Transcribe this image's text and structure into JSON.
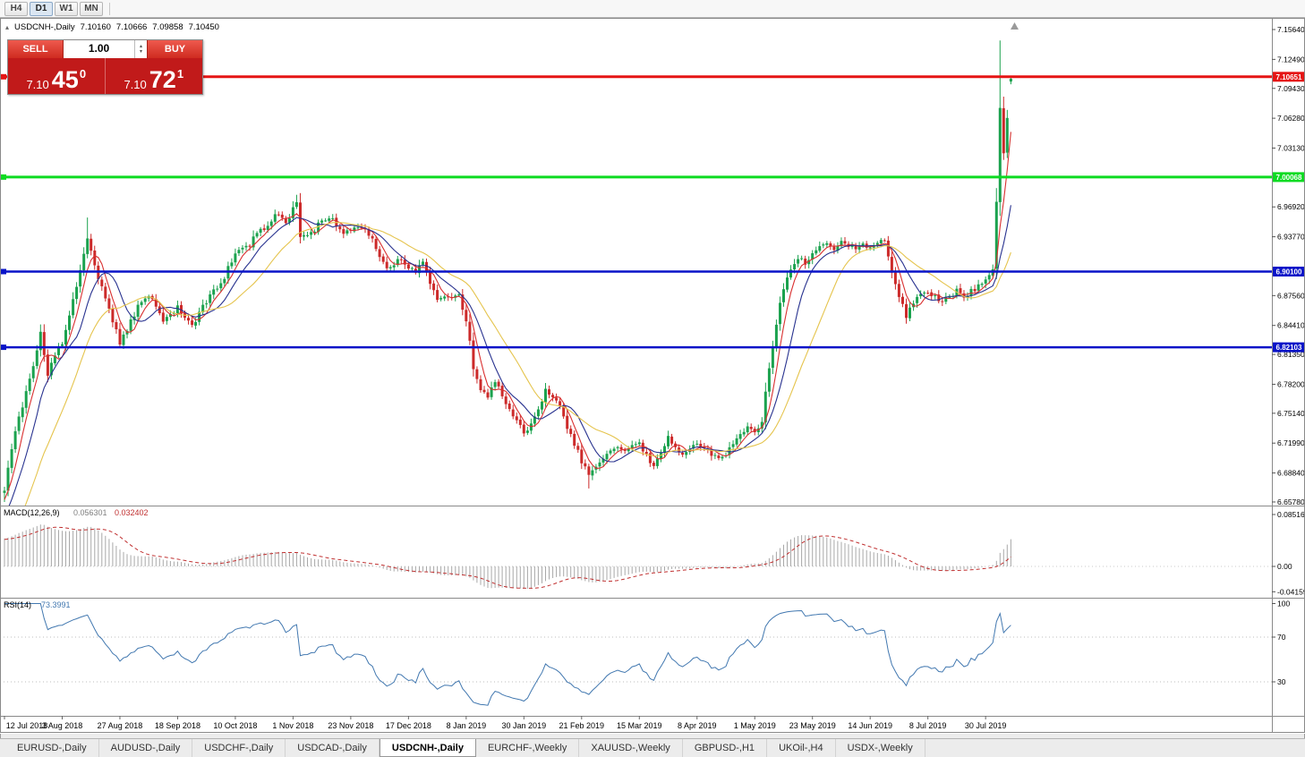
{
  "icons": {
    "collapse": "▴",
    "spin_up": "▴",
    "spin_down": "▾"
  },
  "toolbar": {
    "timeframes": [
      {
        "label": "H4",
        "active": false
      },
      {
        "label": "D1",
        "active": true
      },
      {
        "label": "W1",
        "active": false
      },
      {
        "label": "MN",
        "active": false
      }
    ]
  },
  "symbol_info": {
    "symbol": "USDCNH-,Daily",
    "open": "7.10160",
    "high": "7.10666",
    "low": "7.09858",
    "close": "7.10450"
  },
  "trade_panel": {
    "sell_label": "SELL",
    "buy_label": "BUY",
    "volume": "1.00",
    "sell_price": {
      "small": "7.10",
      "big": "45",
      "sup": "0"
    },
    "buy_price": {
      "small": "7.10",
      "big": "72",
      "sup": "1"
    }
  },
  "tabbar": {
    "tabs": [
      {
        "label": "EURUSD-,Daily",
        "active": false
      },
      {
        "label": "AUDUSD-,Daily",
        "active": false
      },
      {
        "label": "USDCHF-,Daily",
        "active": false
      },
      {
        "label": "USDCAD-,Daily",
        "active": false
      },
      {
        "label": "USDCNH-,Daily",
        "active": true
      },
      {
        "label": "EURCHF-,Weekly",
        "active": false
      },
      {
        "label": "XAUUSD-,Weekly",
        "active": false
      },
      {
        "label": "GBPUSD-,H1",
        "active": false
      },
      {
        "label": "UKOil-,H4",
        "active": false
      },
      {
        "label": "USDX-,Weekly",
        "active": false
      }
    ]
  },
  "chart_data": {
    "type": "candlestick",
    "symbol": "USDCNH-",
    "timeframe": "Daily",
    "last_candle": {
      "open": 7.1016,
      "high": 7.10666,
      "low": 7.09858,
      "close": 7.1045
    },
    "y_range": {
      "top": 7.1668,
      "bottom": 6.654
    },
    "y_axis_labels": [
      "7.15640",
      "7.12490",
      "7.09430",
      "7.06280",
      "7.03130",
      "6.96920",
      "6.93770",
      "6.87560",
      "6.84410",
      "6.81350",
      "6.78200",
      "6.75140",
      "6.71990",
      "6.68840",
      "6.65780"
    ],
    "x_axis": {
      "labels": [
        {
          "label": "12 Jul 2018",
          "day": 0
        },
        {
          "label": "3 Aug 2018",
          "day": 16
        },
        {
          "label": "27 Aug 2018",
          "day": 32
        },
        {
          "label": "18 Sep 2018",
          "day": 48
        },
        {
          "label": "10 Oct 2018",
          "day": 64
        },
        {
          "label": "1 Nov 2018",
          "day": 80
        },
        {
          "label": "23 Nov 2018",
          "day": 96
        },
        {
          "label": "17 Dec 2018",
          "day": 112
        },
        {
          "label": "8 Jan 2019",
          "day": 128
        },
        {
          "label": "30 Jan 2019",
          "day": 144
        },
        {
          "label": "21 Feb 2019",
          "day": 160
        },
        {
          "label": "15 Mar 2019",
          "day": 176
        },
        {
          "label": "8 Apr 2019",
          "day": 192
        },
        {
          "label": "1 May 2019",
          "day": 208
        },
        {
          "label": "23 May 2019",
          "day": 224
        },
        {
          "label": "14 Jun 2019",
          "day": 240
        },
        {
          "label": "8 Jul 2019",
          "day": 256
        },
        {
          "label": "30 Jul 2019",
          "day": 272
        }
      ]
    },
    "num_candles": 280,
    "warmup_days": 30,
    "candle_colors": {
      "up": "#1ba24e",
      "down": "#cc2a2a"
    },
    "price_anchors": [
      [
        -30,
        6.43
      ],
      [
        -22,
        6.5
      ],
      [
        -14,
        6.575
      ],
      [
        -7,
        6.625
      ],
      [
        0,
        6.672
      ],
      [
        2,
        6.715
      ],
      [
        4,
        6.745
      ],
      [
        6,
        6.775
      ],
      [
        8,
        6.8
      ],
      [
        10,
        6.835
      ],
      [
        12,
        6.79
      ],
      [
        14,
        6.815
      ],
      [
        16,
        6.825
      ],
      [
        18,
        6.855
      ],
      [
        20,
        6.885
      ],
      [
        23,
        6.935
      ],
      [
        25,
        6.905
      ],
      [
        27,
        6.885
      ],
      [
        29,
        6.862
      ],
      [
        32,
        6.826
      ],
      [
        34,
        6.84
      ],
      [
        36,
        6.856
      ],
      [
        38,
        6.87
      ],
      [
        40,
        6.876
      ],
      [
        42,
        6.862
      ],
      [
        44,
        6.848
      ],
      [
        46,
        6.856
      ],
      [
        48,
        6.864
      ],
      [
        50,
        6.852
      ],
      [
        52,
        6.842
      ],
      [
        54,
        6.856
      ],
      [
        56,
        6.87
      ],
      [
        58,
        6.88
      ],
      [
        60,
        6.886
      ],
      [
        62,
        6.904
      ],
      [
        64,
        6.92
      ],
      [
        66,
        6.926
      ],
      [
        68,
        6.93
      ],
      [
        70,
        6.94
      ],
      [
        72,
        6.946
      ],
      [
        74,
        6.954
      ],
      [
        76,
        6.964
      ],
      [
        78,
        6.954
      ],
      [
        80,
        6.966
      ],
      [
        81,
        6.976
      ],
      [
        82,
        6.936
      ],
      [
        84,
        6.94
      ],
      [
        86,
        6.946
      ],
      [
        88,
        6.954
      ],
      [
        90,
        6.96
      ],
      [
        92,
        6.95
      ],
      [
        94,
        6.94
      ],
      [
        96,
        6.946
      ],
      [
        98,
        6.95
      ],
      [
        100,
        6.944
      ],
      [
        102,
        6.934
      ],
      [
        104,
        6.916
      ],
      [
        106,
        6.906
      ],
      [
        108,
        6.91
      ],
      [
        110,
        6.916
      ],
      [
        112,
        6.906
      ],
      [
        114,
        6.9
      ],
      [
        116,
        6.91
      ],
      [
        118,
        6.886
      ],
      [
        120,
        6.872
      ],
      [
        122,
        6.876
      ],
      [
        124,
        6.87
      ],
      [
        126,
        6.876
      ],
      [
        128,
        6.85
      ],
      [
        130,
        6.8
      ],
      [
        132,
        6.776
      ],
      [
        134,
        6.766
      ],
      [
        136,
        6.786
      ],
      [
        138,
        6.77
      ],
      [
        140,
        6.756
      ],
      [
        142,
        6.746
      ],
      [
        144,
        6.732
      ],
      [
        146,
        6.74
      ],
      [
        148,
        6.756
      ],
      [
        150,
        6.776
      ],
      [
        152,
        6.77
      ],
      [
        154,
        6.76
      ],
      [
        156,
        6.736
      ],
      [
        158,
        6.72
      ],
      [
        160,
        6.7
      ],
      [
        162,
        6.686
      ],
      [
        164,
        6.696
      ],
      [
        166,
        6.706
      ],
      [
        168,
        6.712
      ],
      [
        170,
        6.716
      ],
      [
        172,
        6.71
      ],
      [
        174,
        6.716
      ],
      [
        176,
        6.72
      ],
      [
        178,
        6.706
      ],
      [
        180,
        6.696
      ],
      [
        182,
        6.71
      ],
      [
        184,
        6.726
      ],
      [
        186,
        6.716
      ],
      [
        188,
        6.706
      ],
      [
        190,
        6.716
      ],
      [
        192,
        6.72
      ],
      [
        194,
        6.714
      ],
      [
        196,
        6.708
      ],
      [
        198,
        6.704
      ],
      [
        200,
        6.71
      ],
      [
        202,
        6.72
      ],
      [
        204,
        6.73
      ],
      [
        206,
        6.736
      ],
      [
        208,
        6.732
      ],
      [
        210,
        6.74
      ],
      [
        211,
        6.775
      ],
      [
        212,
        6.8
      ],
      [
        213,
        6.822
      ],
      [
        214,
        6.842
      ],
      [
        215,
        6.866
      ],
      [
        216,
        6.882
      ],
      [
        218,
        6.906
      ],
      [
        220,
        6.916
      ],
      [
        222,
        6.91
      ],
      [
        224,
        6.92
      ],
      [
        226,
        6.926
      ],
      [
        228,
        6.93
      ],
      [
        230,
        6.924
      ],
      [
        232,
        6.936
      ],
      [
        234,
        6.93
      ],
      [
        236,
        6.924
      ],
      [
        238,
        6.93
      ],
      [
        240,
        6.924
      ],
      [
        242,
        6.93
      ],
      [
        244,
        6.936
      ],
      [
        246,
        6.9
      ],
      [
        248,
        6.874
      ],
      [
        250,
        6.854
      ],
      [
        252,
        6.87
      ],
      [
        254,
        6.876
      ],
      [
        256,
        6.88
      ],
      [
        258,
        6.874
      ],
      [
        260,
        6.87
      ],
      [
        262,
        6.876
      ],
      [
        264,
        6.88
      ],
      [
        266,
        6.874
      ],
      [
        268,
        6.88
      ],
      [
        270,
        6.886
      ],
      [
        272,
        6.89
      ],
      [
        274,
        6.902
      ],
      [
        275,
        6.975
      ],
      [
        276,
        7.072
      ],
      [
        277,
        7.028
      ],
      [
        278,
        7.066
      ],
      [
        279,
        7.1045
      ]
    ],
    "forced_candles": [
      {
        "day": 0,
        "low": 6.6578
      },
      {
        "day": 23,
        "high": 6.958
      },
      {
        "day": 81,
        "high": 6.982
      },
      {
        "day": 162,
        "low": 6.672
      },
      {
        "day": 276,
        "high": 7.1449
      },
      {
        "day": 279,
        "open": 7.1016,
        "high": 7.10666,
        "low": 7.09858,
        "close": 7.1045
      }
    ],
    "moving_averages": [
      {
        "name": "ma-fast",
        "period": 5,
        "color": "#d93030"
      },
      {
        "name": "ma-mid",
        "period": 10,
        "color": "#28328f"
      },
      {
        "name": "ma-slow",
        "period": 21,
        "color": "#e5c44d"
      }
    ],
    "horizontal_lines": [
      {
        "label": "7.10651",
        "price": 7.10651,
        "color": "#e51414",
        "width": 3
      },
      {
        "label": "7.00068",
        "price": 7.00068,
        "color": "#0ddb22",
        "width": 3
      },
      {
        "label": "6.90100",
        "price": 6.901,
        "color": "#0a14c8",
        "width": 2.5
      },
      {
        "label": "6.82103",
        "price": 6.82103,
        "color": "#0a14c8",
        "width": 2.5
      }
    ],
    "indicators": [
      {
        "name": "MACD",
        "label": "MACD(12,26,9)",
        "params": "12,26,9",
        "values": [
          "0.056301",
          "0.032402"
        ],
        "axis_labels": [
          "0.085164",
          "0.00",
          "-0.04159"
        ],
        "histogram_color": "#a8a8a8",
        "signal_color": "#c03030"
      },
      {
        "name": "RSI",
        "label": "RSI(14)",
        "params": "14",
        "value": "73.3991",
        "axis_labels": [
          "100",
          "70",
          "30"
        ],
        "levels": [
          70,
          30
        ],
        "line_color": "#4278b0"
      }
    ]
  }
}
